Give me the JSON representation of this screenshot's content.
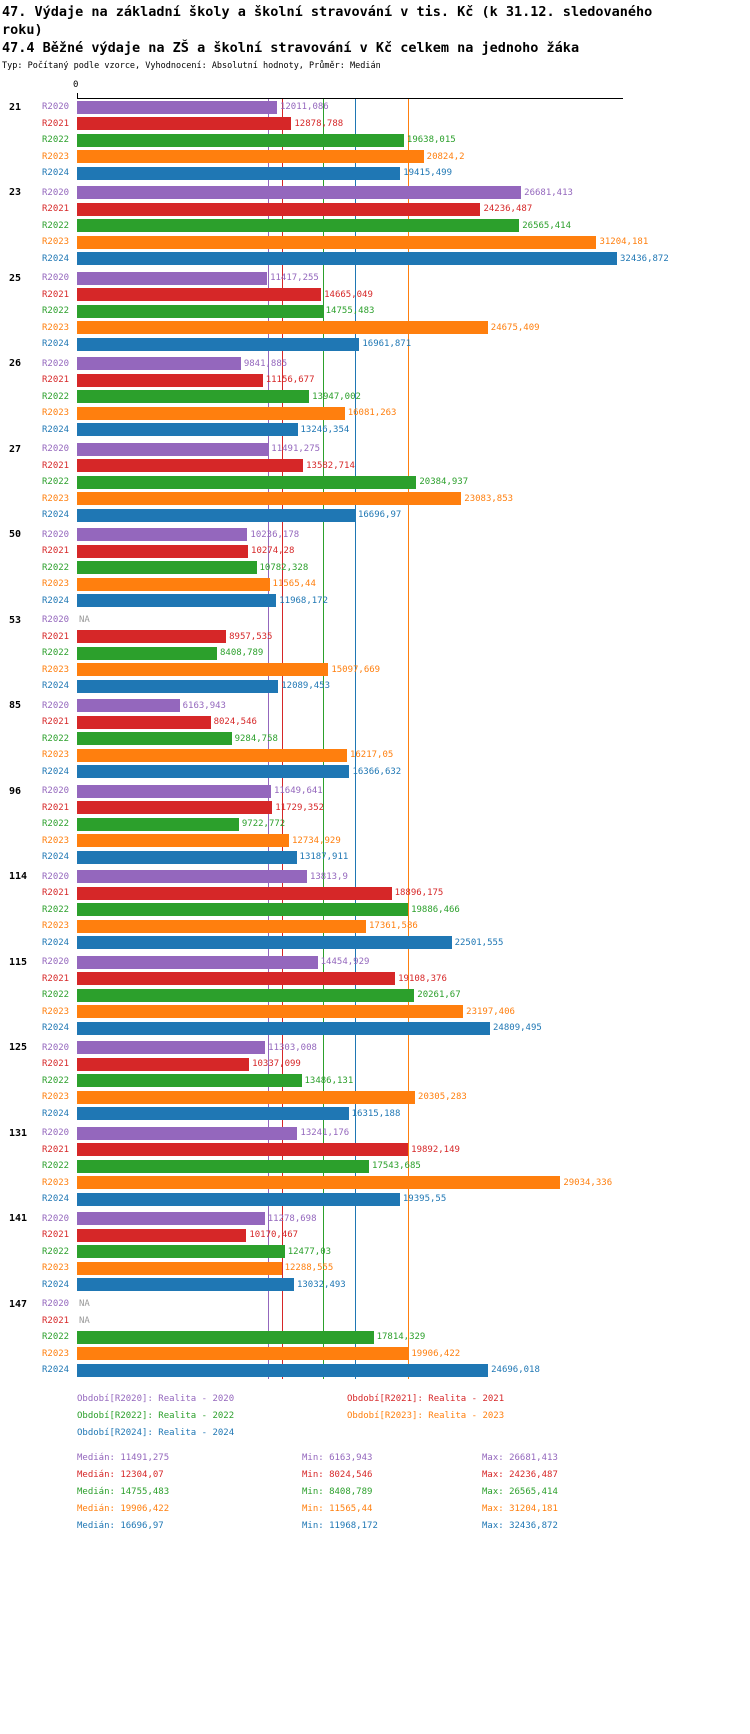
{
  "title_line1": "47. Výdaje na základní školy a školní stravování v tis. Kč (k 31.12. sledovaného roku)",
  "title_line2": "47.4 Běžné výdaje na ZŠ a školní stravování v Kč celkem na jednoho žáka",
  "subtitle": "Typ: Počítaný podle vzorce, Vyhodnocení: Absolutní hodnoty, Průměr: Medián",
  "chart_data": {
    "type": "bar",
    "orientation": "horizontal",
    "x_axis": {
      "origin_label": "0",
      "min": 0,
      "max_value": 32436.872
    },
    "grid": false,
    "legend_position": "bottom",
    "na_label": "NA",
    "series_names": [
      "R2020",
      "R2021",
      "R2022",
      "R2023",
      "R2024"
    ],
    "series_colors": [
      "#9467bd",
      "#d62728",
      "#2ca02c",
      "#ff7f0e",
      "#1f77b4"
    ],
    "median_lines": [
      11491.275,
      12304.07,
      14755.483,
      19906.422,
      16696.97
    ],
    "groups": [
      {
        "category": "21",
        "values": [
          12011.086,
          12878.788,
          19638.015,
          20824.2,
          19415.499
        ],
        "labels": [
          "12011,086",
          "12878,788",
          "19638,015",
          "20824,2",
          "19415,499"
        ]
      },
      {
        "category": "23",
        "values": [
          26681.413,
          24236.487,
          26565.414,
          31204.181,
          32436.872
        ],
        "labels": [
          "26681,413",
          "24236,487",
          "26565,414",
          "31204,181",
          "32436,872"
        ]
      },
      {
        "category": "25",
        "values": [
          11417.255,
          14665.049,
          14755.483,
          24675.409,
          16961.871
        ],
        "labels": [
          "11417,255",
          "14665,049",
          "14755,483",
          "24675,409",
          "16961,871"
        ]
      },
      {
        "category": "26",
        "values": [
          9841.885,
          11156.677,
          13947.002,
          16081.263,
          13246.354
        ],
        "labels": [
          "9841,885",
          "11156,677",
          "13947,002",
          "16081,263",
          "13246,354"
        ]
      },
      {
        "category": "27",
        "values": [
          11491.275,
          13582.714,
          20384.937,
          23083.853,
          16696.97
        ],
        "labels": [
          "11491,275",
          "13582,714",
          "20384,937",
          "23083,853",
          "16696,97"
        ]
      },
      {
        "category": "50",
        "values": [
          10236.178,
          10274.28,
          10782.328,
          11565.44,
          11968.172
        ],
        "labels": [
          "10236,178",
          "10274,28",
          "10782,328",
          "11565,44",
          "11968,172"
        ]
      },
      {
        "category": "53",
        "values": [
          null,
          8957.535,
          8408.789,
          15097.669,
          12089.453
        ],
        "labels": [
          "NA",
          "8957,535",
          "8408,789",
          "15097,669",
          "12089,453"
        ]
      },
      {
        "category": "85",
        "values": [
          6163.943,
          8024.546,
          9284.758,
          16217.05,
          16366.632
        ],
        "labels": [
          "6163,943",
          "8024,546",
          "9284,758",
          "16217,05",
          "16366,632"
        ]
      },
      {
        "category": "96",
        "values": [
          11649.641,
          11729.352,
          9722.772,
          12734.929,
          13187.911
        ],
        "labels": [
          "11649,641",
          "11729,352",
          "9722,772",
          "12734,929",
          "13187,911"
        ]
      },
      {
        "category": "114",
        "values": [
          13813.9,
          18896.175,
          19886.466,
          17361.586,
          22501.555
        ],
        "labels": [
          "13813,9",
          "18896,175",
          "19886,466",
          "17361,586",
          "22501,555"
        ]
      },
      {
        "category": "115",
        "values": [
          14454.929,
          19108.376,
          20261.67,
          23197.406,
          24809.495
        ],
        "labels": [
          "14454,929",
          "19108,376",
          "20261,67",
          "23197,406",
          "24809,495"
        ]
      },
      {
        "category": "125",
        "values": [
          11303.008,
          10337.099,
          13486.131,
          20305.283,
          16315.188
        ],
        "labels": [
          "11303,008",
          "10337,099",
          "13486,131",
          "20305,283",
          "16315,188"
        ]
      },
      {
        "category": "131",
        "values": [
          13241.176,
          19892.149,
          17543.685,
          29034.336,
          19395.55
        ],
        "labels": [
          "13241,176",
          "19892,149",
          "17543,685",
          "29034,336",
          "19395,55"
        ]
      },
      {
        "category": "141",
        "values": [
          11278.698,
          10170.467,
          12477.03,
          12288.555,
          13032.493
        ],
        "labels": [
          "11278,698",
          "10170,467",
          "12477,03",
          "12288,555",
          "13032,493"
        ]
      },
      {
        "category": "147",
        "values": [
          null,
          null,
          17814.329,
          19906.422,
          24696.018
        ],
        "labels": [
          "NA",
          "NA",
          "17814,329",
          "19906,422",
          "24696,018"
        ]
      }
    ]
  },
  "legend": [
    {
      "label": "Období[R2020]: Realita - 2020",
      "color": "#9467bd"
    },
    {
      "label": "Období[R2021]: Realita - 2021",
      "color": "#d62728"
    },
    {
      "label": "Období[R2022]: Realita - 2022",
      "color": "#2ca02c"
    },
    {
      "label": "Období[R2023]: Realita - 2023",
      "color": "#ff7f0e"
    },
    {
      "label": "Období[R2024]: Realita - 2024",
      "color": "#1f77b4"
    }
  ],
  "stats": [
    {
      "color": "#9467bd",
      "median": "Medián: 11491,275",
      "min": "Min: 6163,943",
      "max": "Max: 26681,413"
    },
    {
      "color": "#d62728",
      "median": "Medián: 12304,07",
      "min": "Min: 8024,546",
      "max": "Max: 24236,487"
    },
    {
      "color": "#2ca02c",
      "median": "Medián: 14755,483",
      "min": "Min: 8408,789",
      "max": "Max: 26565,414"
    },
    {
      "color": "#ff7f0e",
      "median": "Medián: 19906,422",
      "min": "Min: 11565,44",
      "max": "Max: 31204,181"
    },
    {
      "color": "#1f77b4",
      "median": "Medián: 16696,97",
      "min": "Min: 11968,172",
      "max": "Max: 32436,872"
    }
  ]
}
